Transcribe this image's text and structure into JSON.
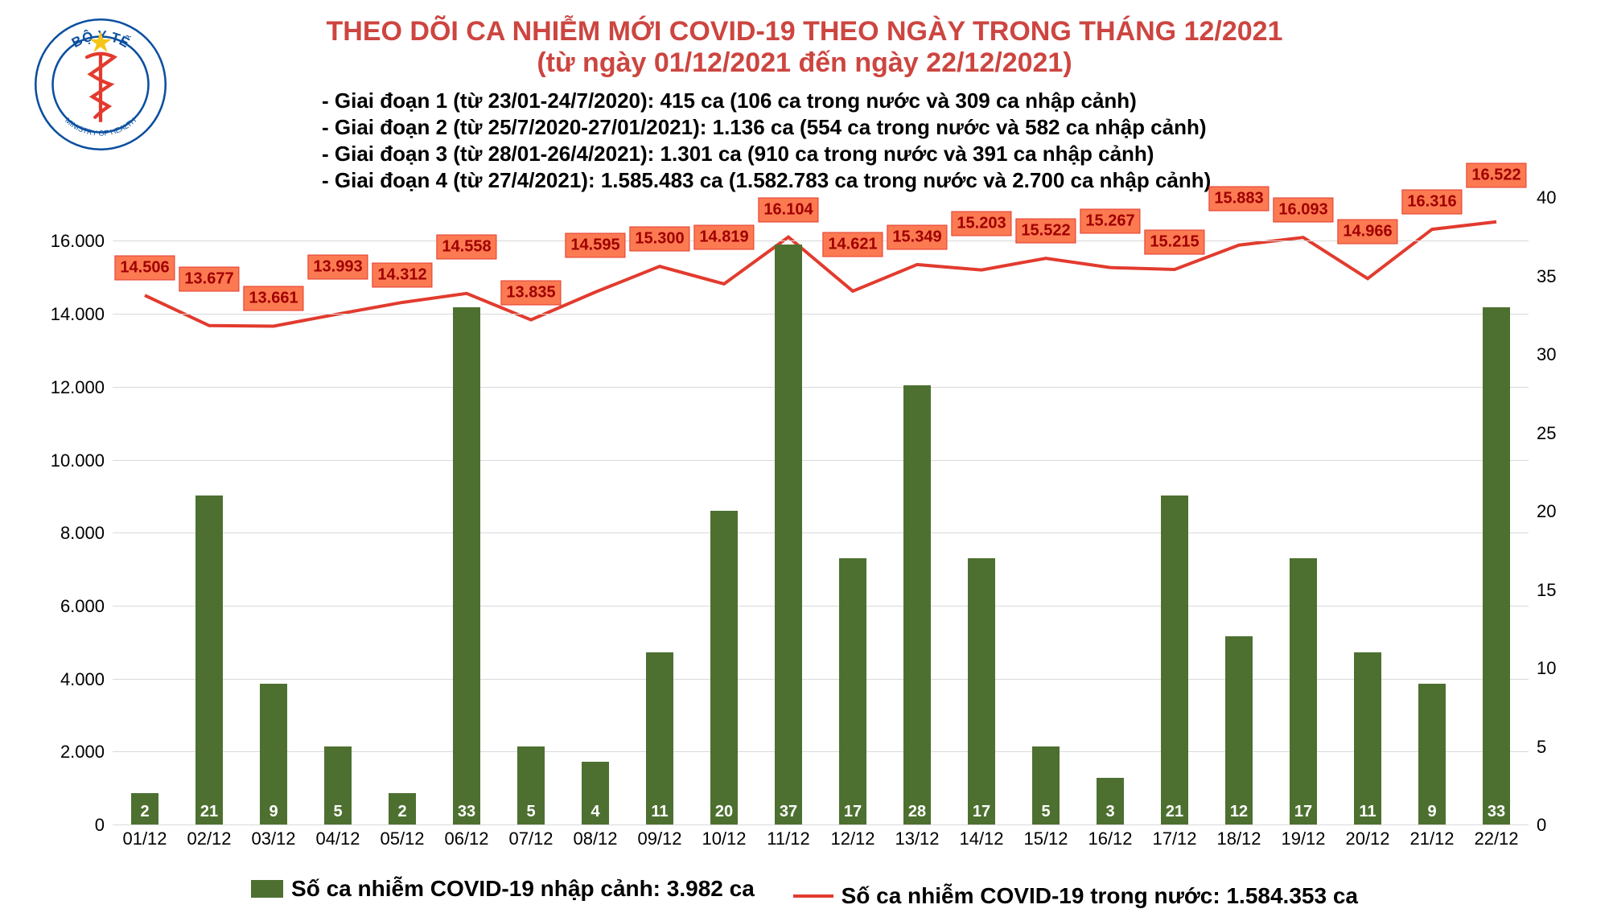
{
  "title": {
    "line1": "THEO DÕI CA NHIỄM MỚI COVID-19 THEO NGÀY TRONG THÁNG 12/2021",
    "line2": "(từ ngày 01/12/2021 đến ngày 22/12/2021)",
    "color": "#cd4540",
    "fontsize": 34
  },
  "notes": {
    "lines": [
      "- Giai đoạn 1 (từ 23/01-24/7/2020): 415 ca (106 ca trong nước và 309 ca nhập cảnh)",
      "- Giai đoạn 2 (từ 25/7/2020-27/01/2021): 1.136 ca (554 ca trong nước và 582 ca nhập cảnh)",
      "- Giai đoạn 3 (từ 28/01-26/4/2021): 1.301 ca (910 ca trong nước và 391 ca nhập cảnh)",
      "- Giai đoạn 4 (từ 27/4/2021): 1.585.483 ca (1.582.783 ca trong nước và 2.700 ca nhập cảnh)"
    ],
    "color": "#000000",
    "fontsize": 26
  },
  "logo": {
    "outer_text_top": "BỘ Y TẾ",
    "outer_text_bottom": "MINISTRY OF HEALTH",
    "ring_color": "#0a4fa0",
    "star_color": "#f5c518",
    "snake_color": "#e23b2e"
  },
  "chart": {
    "type": "bar+line",
    "background_color": "#ffffff",
    "grid_color": "#d9d9d9",
    "categories": [
      "01/12",
      "02/12",
      "03/12",
      "04/12",
      "05/12",
      "06/12",
      "07/12",
      "08/12",
      "09/12",
      "10/12",
      "11/12",
      "12/12",
      "13/12",
      "14/12",
      "15/12",
      "16/12",
      "17/12",
      "18/12",
      "19/12",
      "20/12",
      "21/12",
      "22/12"
    ],
    "bars": {
      "values_right_axis": [
        2,
        21,
        9,
        5,
        2,
        33,
        5,
        4,
        11,
        20,
        37,
        17,
        28,
        17,
        5,
        3,
        21,
        12,
        17,
        11,
        9,
        33
      ],
      "color": "#4d7030",
      "label_color": "#ffffff",
      "width_fraction": 0.42
    },
    "line": {
      "values_left_axis": [
        14506,
        13677,
        13661,
        13993,
        14312,
        14558,
        13835,
        14595,
        15300,
        14819,
        16104,
        14621,
        15349,
        15203,
        15522,
        15267,
        15215,
        15883,
        16093,
        14966,
        16316,
        16522
      ],
      "labels": [
        "14.506",
        "13.677",
        "13.661",
        "13.993",
        "14.312",
        "14.558",
        "13.835",
        "14.595",
        "15.300",
        "14.819",
        "16.104",
        "14.621",
        "15.349",
        "15.203",
        "15.522",
        "15.267",
        "15.215",
        "15.883",
        "16.093",
        "14.966",
        "16.316",
        "16.522"
      ],
      "color": "#e23b2e",
      "width": 4,
      "label_bg": "#fc7a52",
      "label_border": "#e23b2e",
      "label_text_color": "#a00000"
    },
    "y_left": {
      "min": 0,
      "max": 17200,
      "ticks": [
        0,
        2000,
        4000,
        6000,
        8000,
        10000,
        12000,
        14000,
        16000
      ],
      "tick_labels": [
        "0",
        "2.000",
        "4.000",
        "6.000",
        "8.000",
        "10.000",
        "12.000",
        "14.000",
        "16.000"
      ],
      "fontsize": 22
    },
    "y_right": {
      "min": 0,
      "max": 40,
      "ticks": [
        0,
        5,
        10,
        15,
        20,
        25,
        30,
        35,
        40
      ],
      "tick_labels": [
        "0",
        "5",
        "10",
        "15",
        "20",
        "25",
        "30",
        "35",
        "40"
      ],
      "fontsize": 22
    },
    "x_fontsize": 22
  },
  "legend": {
    "bar_text": "Số ca nhiễm COVID-19 nhập cảnh: 3.982 ca",
    "line_text": "Số ca nhiễm COVID-19 trong nước: 1.584.353 ca",
    "bar_color": "#4d7030",
    "line_color": "#e23b2e",
    "fontsize": 28
  }
}
